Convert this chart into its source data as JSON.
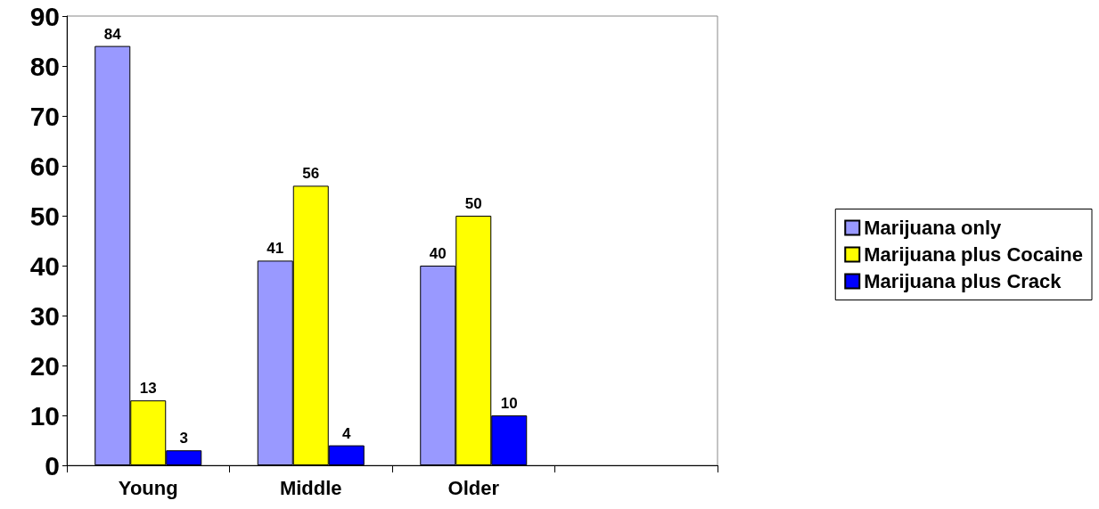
{
  "chart_data": {
    "type": "bar",
    "categories": [
      "Young",
      "Middle",
      "Older",
      null
    ],
    "series": [
      {
        "name": "Marijuana only",
        "color": "#9999ff",
        "values": [
          84,
          41,
          40,
          null
        ]
      },
      {
        "name": "Marijuana plus Cocaine",
        "color": "#ffff00",
        "values": [
          13,
          56,
          50,
          null
        ]
      },
      {
        "name": "Marijuana plus Crack",
        "color": "#0000ff",
        "values": [
          3,
          4,
          10,
          null
        ]
      }
    ],
    "ylim": [
      0,
      90
    ],
    "yticks": [
      0,
      10,
      20,
      30,
      40,
      50,
      60,
      70,
      80,
      90
    ],
    "grid": false,
    "legend": "right",
    "data_labels": true
  }
}
